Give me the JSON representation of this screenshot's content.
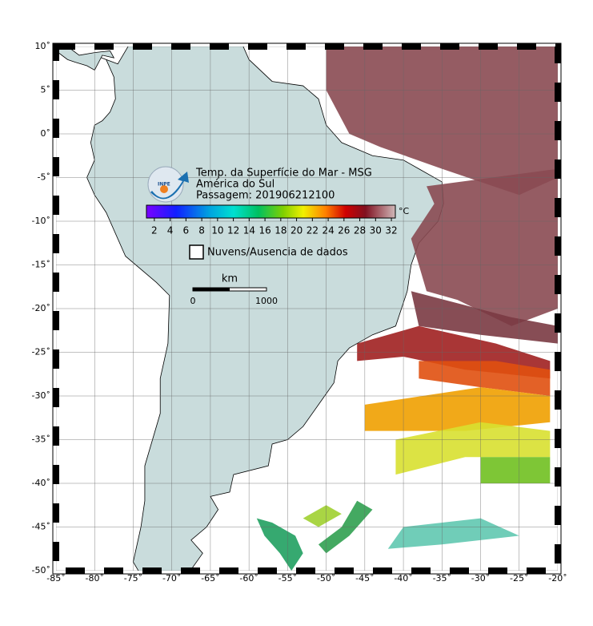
{
  "map": {
    "lon_ticks": [
      {
        "value": -85,
        "label": "-85˚"
      },
      {
        "value": -80,
        "label": "-80˚"
      },
      {
        "value": -75,
        "label": "-75˚"
      },
      {
        "value": -70,
        "label": "-70˚"
      },
      {
        "value": -65,
        "label": "-65˚"
      },
      {
        "value": -60,
        "label": "-60˚"
      },
      {
        "value": -55,
        "label": "-55˚"
      },
      {
        "value": -50,
        "label": "-50˚"
      },
      {
        "value": -45,
        "label": "-45˚"
      },
      {
        "value": -40,
        "label": "-40˚"
      },
      {
        "value": -35,
        "label": "-35˚"
      },
      {
        "value": -30,
        "label": "-30˚"
      },
      {
        "value": -25,
        "label": "-25˚"
      },
      {
        "value": -20,
        "label": "-20˚"
      }
    ],
    "lat_ticks": [
      {
        "value": 10,
        "label": "10˚"
      },
      {
        "value": 5,
        "label": "5˚"
      },
      {
        "value": 0,
        "label": "0˚"
      },
      {
        "value": -5,
        "label": "-5˚"
      },
      {
        "value": -10,
        "label": "-10˚"
      },
      {
        "value": -15,
        "label": "-15˚"
      },
      {
        "value": -20,
        "label": "-20˚"
      },
      {
        "value": -25,
        "label": "-25˚"
      },
      {
        "value": -30,
        "label": "-30˚"
      },
      {
        "value": -35,
        "label": "-35˚"
      },
      {
        "value": -40,
        "label": "-40˚"
      },
      {
        "value": -45,
        "label": "-45˚"
      },
      {
        "value": -50,
        "label": "-50˚"
      }
    ],
    "lonlim": [
      -85,
      -20
    ],
    "latlim": [
      10,
      -50
    ]
  },
  "header": {
    "logo_text": "INPE",
    "title": "Temp. da Superfície do Mar - MSG",
    "region": "América do Sul",
    "pass": "Passagem: 201906212100"
  },
  "colorbar": {
    "range": [
      1,
      32.5
    ],
    "ticks": [
      2,
      4,
      6,
      8,
      10,
      12,
      14,
      16,
      18,
      20,
      22,
      24,
      26,
      28,
      30,
      32
    ],
    "unit": "°C"
  },
  "legend": {
    "label": "Nuvens/Ausencia de dados"
  },
  "scale_bar": {
    "unit": "km",
    "start": "0",
    "end": "1000"
  }
}
